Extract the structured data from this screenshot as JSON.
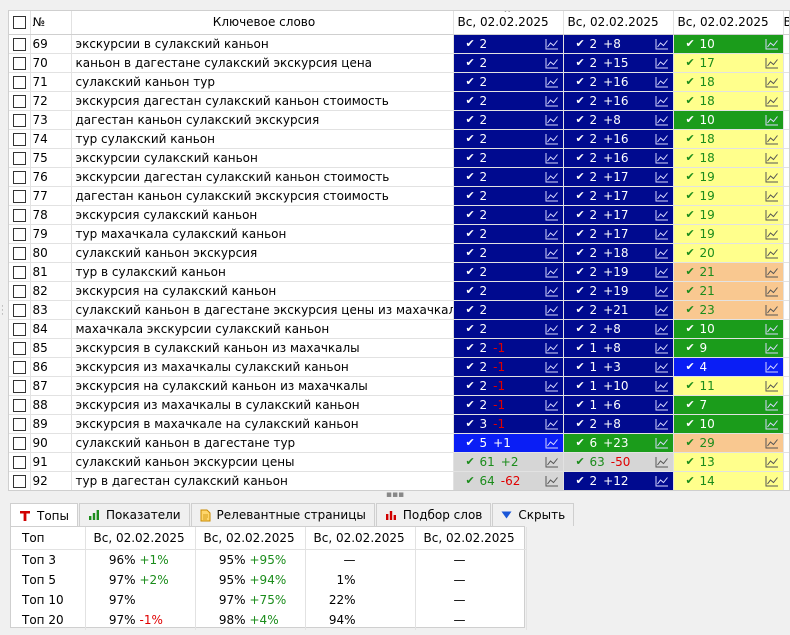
{
  "grid": {
    "headers": {
      "number": "№",
      "keyword": "Ключевое слово",
      "dates": [
        "Вс, 02.02.2025",
        "Вс, 02.02.2025",
        "Вс, 02.02.2025",
        "В"
      ]
    },
    "rows": [
      {
        "num": "69",
        "kw": "экскурсии в сулакский каньон",
        "c1": {
          "v": "2",
          "d": "",
          "color": "navy"
        },
        "c2": {
          "v": "2",
          "d": "+8",
          "color": "navy"
        },
        "c3": {
          "v": "10",
          "d": "",
          "color": "green"
        }
      },
      {
        "num": "70",
        "kw": "каньон в дагестане сулакский экскурсия цена",
        "c1": {
          "v": "2",
          "d": "",
          "color": "navy"
        },
        "c2": {
          "v": "2",
          "d": "+15",
          "color": "navy"
        },
        "c3": {
          "v": "17",
          "d": "",
          "color": "yellow"
        }
      },
      {
        "num": "71",
        "kw": "сулакский каньон тур",
        "c1": {
          "v": "2",
          "d": "",
          "color": "navy"
        },
        "c2": {
          "v": "2",
          "d": "+16",
          "color": "navy"
        },
        "c3": {
          "v": "18",
          "d": "",
          "color": "yellow"
        }
      },
      {
        "num": "72",
        "kw": "экскурсия дагестан сулакский каньон стоимость",
        "c1": {
          "v": "2",
          "d": "",
          "color": "navy"
        },
        "c2": {
          "v": "2",
          "d": "+16",
          "color": "navy"
        },
        "c3": {
          "v": "18",
          "d": "",
          "color": "yellow"
        }
      },
      {
        "num": "73",
        "kw": "дагестан каньон сулакский экскурсия",
        "c1": {
          "v": "2",
          "d": "",
          "color": "navy"
        },
        "c2": {
          "v": "2",
          "d": "+8",
          "color": "navy"
        },
        "c3": {
          "v": "10",
          "d": "",
          "color": "green"
        }
      },
      {
        "num": "74",
        "kw": "тур сулакский каньон",
        "c1": {
          "v": "2",
          "d": "",
          "color": "navy"
        },
        "c2": {
          "v": "2",
          "d": "+16",
          "color": "navy"
        },
        "c3": {
          "v": "18",
          "d": "",
          "color": "yellow"
        }
      },
      {
        "num": "75",
        "kw": "экскурсии сулакский каньон",
        "c1": {
          "v": "2",
          "d": "",
          "color": "navy"
        },
        "c2": {
          "v": "2",
          "d": "+16",
          "color": "navy"
        },
        "c3": {
          "v": "18",
          "d": "",
          "color": "yellow"
        }
      },
      {
        "num": "76",
        "kw": "экскурсии дагестан сулакский каньон стоимость",
        "c1": {
          "v": "2",
          "d": "",
          "color": "navy"
        },
        "c2": {
          "v": "2",
          "d": "+17",
          "color": "navy"
        },
        "c3": {
          "v": "19",
          "d": "",
          "color": "yellow"
        }
      },
      {
        "num": "77",
        "kw": "дагестан каньон сулакский экскурсия стоимость",
        "c1": {
          "v": "2",
          "d": "",
          "color": "navy"
        },
        "c2": {
          "v": "2",
          "d": "+17",
          "color": "navy"
        },
        "c3": {
          "v": "19",
          "d": "",
          "color": "yellow"
        }
      },
      {
        "num": "78",
        "kw": "экскурсия сулакский каньон",
        "c1": {
          "v": "2",
          "d": "",
          "color": "navy"
        },
        "c2": {
          "v": "2",
          "d": "+17",
          "color": "navy"
        },
        "c3": {
          "v": "19",
          "d": "",
          "color": "yellow"
        }
      },
      {
        "num": "79",
        "kw": "тур махачкала сулакский каньон",
        "c1": {
          "v": "2",
          "d": "",
          "color": "navy"
        },
        "c2": {
          "v": "2",
          "d": "+17",
          "color": "navy"
        },
        "c3": {
          "v": "19",
          "d": "",
          "color": "yellow"
        }
      },
      {
        "num": "80",
        "kw": "сулакский каньон экскурсия",
        "c1": {
          "v": "2",
          "d": "",
          "color": "navy"
        },
        "c2": {
          "v": "2",
          "d": "+18",
          "color": "navy"
        },
        "c3": {
          "v": "20",
          "d": "",
          "color": "yellow"
        }
      },
      {
        "num": "81",
        "kw": "тур в сулакский каньон",
        "c1": {
          "v": "2",
          "d": "",
          "color": "navy"
        },
        "c2": {
          "v": "2",
          "d": "+19",
          "color": "navy"
        },
        "c3": {
          "v": "21",
          "d": "",
          "color": "orange"
        }
      },
      {
        "num": "82",
        "kw": "экскурсия на сулакский каньон",
        "c1": {
          "v": "2",
          "d": "",
          "color": "navy"
        },
        "c2": {
          "v": "2",
          "d": "+19",
          "color": "navy"
        },
        "c3": {
          "v": "21",
          "d": "",
          "color": "orange"
        }
      },
      {
        "num": "83",
        "kw": "сулакский каньон в дагестане экскурсия цены из махачкалы",
        "c1": {
          "v": "2",
          "d": "",
          "color": "navy"
        },
        "c2": {
          "v": "2",
          "d": "+21",
          "color": "navy"
        },
        "c3": {
          "v": "23",
          "d": "",
          "color": "orange"
        }
      },
      {
        "num": "84",
        "kw": "махачкала экскурсии сулакский каньон",
        "c1": {
          "v": "2",
          "d": "",
          "color": "navy"
        },
        "c2": {
          "v": "2",
          "d": "+8",
          "color": "navy"
        },
        "c3": {
          "v": "10",
          "d": "",
          "color": "green"
        }
      },
      {
        "num": "85",
        "kw": "экскурсия в сулакский каньон из махачкалы",
        "c1": {
          "v": "2",
          "d": "-1",
          "color": "navy"
        },
        "c2": {
          "v": "1",
          "d": "+8",
          "color": "navy"
        },
        "c3": {
          "v": "9",
          "d": "",
          "color": "green"
        }
      },
      {
        "num": "86",
        "kw": "экскурсия из махачкалы сулакский каньон",
        "c1": {
          "v": "2",
          "d": "-1",
          "color": "navy"
        },
        "c2": {
          "v": "1",
          "d": "+3",
          "color": "navy"
        },
        "c3": {
          "v": "4",
          "d": "",
          "color": "blue"
        }
      },
      {
        "num": "87",
        "kw": "экскурсия на сулакский каньон из махачкалы",
        "c1": {
          "v": "2",
          "d": "-1",
          "color": "navy"
        },
        "c2": {
          "v": "1",
          "d": "+10",
          "color": "navy"
        },
        "c3": {
          "v": "11",
          "d": "",
          "color": "yellow"
        }
      },
      {
        "num": "88",
        "kw": "экскурсия из махачкалы в сулакский каньон",
        "c1": {
          "v": "2",
          "d": "-1",
          "color": "navy"
        },
        "c2": {
          "v": "1",
          "d": "+6",
          "color": "navy"
        },
        "c3": {
          "v": "7",
          "d": "",
          "color": "green"
        }
      },
      {
        "num": "89",
        "kw": "экскурсия в махачкале на сулакский каньон",
        "c1": {
          "v": "3",
          "d": "-1",
          "color": "navy"
        },
        "c2": {
          "v": "2",
          "d": "+8",
          "color": "navy"
        },
        "c3": {
          "v": "10",
          "d": "",
          "color": "green"
        }
      },
      {
        "num": "90",
        "kw": "сулакский каньон в дагестане тур",
        "c1": {
          "v": "5",
          "d": "+1",
          "color": "blue"
        },
        "c2": {
          "v": "6",
          "d": "+23",
          "color": "green"
        },
        "c3": {
          "v": "29",
          "d": "",
          "color": "orange"
        }
      },
      {
        "num": "91",
        "kw": "сулакский каньон экскурсии цены",
        "c1": {
          "v": "61",
          "d": "+2",
          "color": "gray"
        },
        "c2": {
          "v": "63",
          "d": "-50",
          "color": "gray"
        },
        "c3": {
          "v": "13",
          "d": "",
          "color": "yellow"
        }
      },
      {
        "num": "92",
        "kw": "тур в дагестан сулакский каньон",
        "c1": {
          "v": "64",
          "d": "-62",
          "color": "gray"
        },
        "c2": {
          "v": "2",
          "d": "+12",
          "color": "navy"
        },
        "c3": {
          "v": "14",
          "d": "",
          "color": "yellow"
        }
      }
    ]
  },
  "tabs": [
    {
      "label": "Топы",
      "icon": "tops-icon",
      "active": true
    },
    {
      "label": "Показатели",
      "icon": "bar-chart-icon",
      "active": false
    },
    {
      "label": "Релевантные страницы",
      "icon": "document-icon",
      "active": false
    },
    {
      "label": "Подбор слов",
      "icon": "bar-chart-icon",
      "active": false
    },
    {
      "label": "Скрыть",
      "icon": "triangle-down-icon",
      "active": false
    }
  ],
  "tops": {
    "headers": [
      "Топ",
      "Вс, 02.02.2025",
      "Вс, 02.02.2025",
      "Вс, 02.02.2025",
      "Вс, 02.02.2025"
    ],
    "rows": [
      {
        "label": "Топ 3",
        "cells": [
          {
            "v": "96%",
            "d": "+1%"
          },
          {
            "v": "95%",
            "d": "+95%"
          },
          {
            "v": "—",
            "d": ""
          },
          {
            "v": "—",
            "d": ""
          }
        ]
      },
      {
        "label": "Топ 5",
        "cells": [
          {
            "v": "97%",
            "d": "+2%"
          },
          {
            "v": "95%",
            "d": "+94%"
          },
          {
            "v": "1%",
            "d": ""
          },
          {
            "v": "—",
            "d": ""
          }
        ]
      },
      {
        "label": "Топ 10",
        "cells": [
          {
            "v": "97%",
            "d": ""
          },
          {
            "v": "97%",
            "d": "+75%"
          },
          {
            "v": "22%",
            "d": ""
          },
          {
            "v": "—",
            "d": ""
          }
        ]
      },
      {
        "label": "Топ 20",
        "cells": [
          {
            "v": "97%",
            "d": "-1%"
          },
          {
            "v": "98%",
            "d": "+4%"
          },
          {
            "v": "94%",
            "d": ""
          },
          {
            "v": "—",
            "d": ""
          }
        ]
      }
    ]
  },
  "colors": {
    "navy": "#000a8f",
    "blue": "#0a1ef5",
    "green": "#1b9c1b",
    "yellow": "#ffff8c",
    "orange": "#f9c890",
    "gray": "#d6d6d6",
    "positive_text": "#1b8c1b",
    "negative_text": "#e00000"
  }
}
